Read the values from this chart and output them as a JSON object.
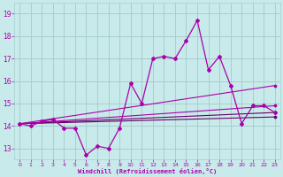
{
  "xlabel": "Windchill (Refroidissement éolien,°C)",
  "x_ticks": [
    0,
    1,
    2,
    3,
    4,
    5,
    6,
    7,
    8,
    9,
    10,
    11,
    12,
    13,
    14,
    15,
    16,
    17,
    18,
    19,
    20,
    21,
    22,
    23
  ],
  "ylim": [
    12.5,
    19.5
  ],
  "yticks": [
    13,
    14,
    15,
    16,
    17,
    18,
    19
  ],
  "bg_color": "#c8eaea",
  "grid_color": "#a8cece",
  "line_color": "#aa00aa",
  "series1": [
    14.1,
    14.0,
    14.2,
    14.3,
    13.9,
    13.9,
    12.7,
    13.1,
    13.0,
    13.9,
    15.9,
    15.0,
    17.0,
    17.1,
    17.0,
    17.8,
    18.7,
    16.5,
    17.1,
    15.8,
    14.1,
    14.9,
    14.9,
    14.6
  ],
  "line1_x": [
    0,
    23
  ],
  "line1_y": [
    14.1,
    14.4
  ],
  "line2_x": [
    0,
    23
  ],
  "line2_y": [
    14.1,
    14.6
  ],
  "line3_x": [
    0,
    23
  ],
  "line3_y": [
    14.1,
    14.9
  ],
  "line4_x": [
    0,
    23
  ],
  "line4_y": [
    14.1,
    15.8
  ]
}
